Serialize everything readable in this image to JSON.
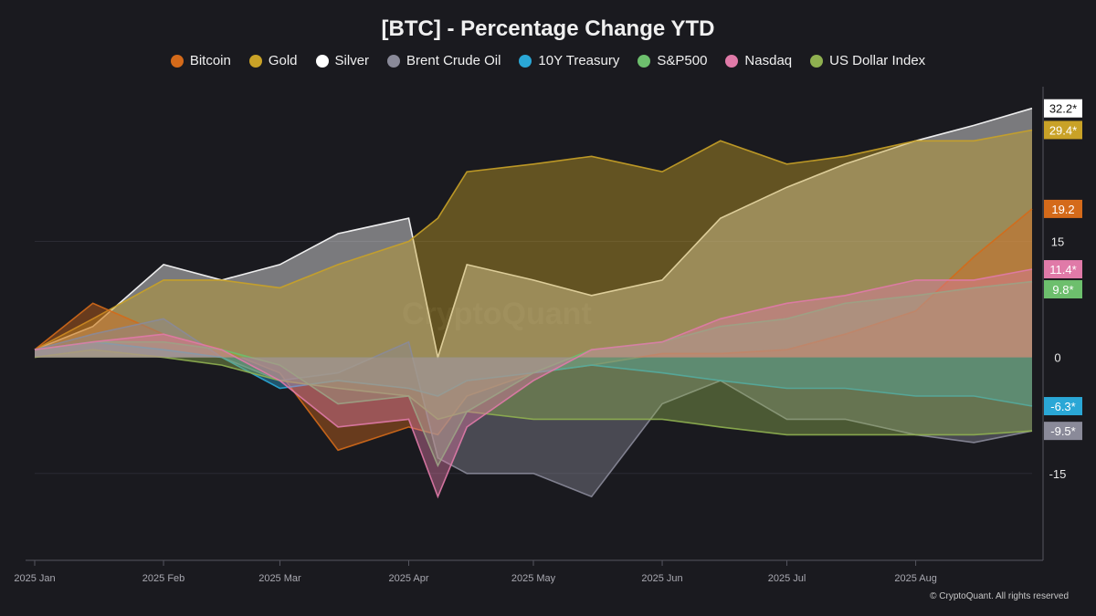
{
  "footer": "© CryptoQuant. All rights reserved",
  "watermark": "CryptoQuant",
  "chart_data": {
    "type": "area",
    "title": "[BTC] - Percentage Change YTD",
    "x": [
      "2025-01-01",
      "2025-01-15",
      "2025-02-01",
      "2025-02-15",
      "2025-03-01",
      "2025-03-15",
      "2025-04-01",
      "2025-04-08",
      "2025-04-15",
      "2025-05-01",
      "2025-05-15",
      "2025-06-01",
      "2025-06-15",
      "2025-07-01",
      "2025-07-15",
      "2025-08-01",
      "2025-08-15",
      "2025-08-29"
    ],
    "x_tick_labels": [
      "2025 Jan",
      "2025 Feb",
      "2025 Mar",
      "2025 Apr",
      "2025 May",
      "2025 Jun",
      "2025 Jul",
      "2025 Aug"
    ],
    "y_ticks": [
      15,
      0,
      -15
    ],
    "ylim": [
      -26,
      35
    ],
    "legend_position": "top-center",
    "grid": true,
    "series": [
      {
        "name": "Bitcoin",
        "color": "#d46a1a",
        "values": [
          1,
          7,
          3,
          1,
          -2,
          -12,
          -9,
          -10,
          -5,
          -2,
          -1,
          0.5,
          0.5,
          1,
          3,
          6,
          13,
          19.2
        ],
        "end_label": "19.2"
      },
      {
        "name": "Gold",
        "color": "#c9a227",
        "values": [
          1,
          5,
          10,
          10,
          9,
          12,
          15,
          18,
          24,
          25,
          26,
          24,
          28,
          25,
          26,
          28,
          28,
          29.4
        ],
        "end_label": "29.4*"
      },
      {
        "name": "Silver",
        "color": "#ffffff",
        "values": [
          1,
          4,
          12,
          10,
          12,
          16,
          18,
          0,
          12,
          10,
          8,
          10,
          18,
          22,
          25,
          28,
          30,
          32.2
        ],
        "end_label": "32.2*"
      },
      {
        "name": "Brent Crude Oil",
        "color": "#8a8a99",
        "values": [
          1,
          3,
          5,
          0,
          -3,
          -2,
          2,
          -13,
          -15,
          -15,
          -18,
          -6,
          -3,
          -8,
          -8,
          -10,
          -11,
          -9.5
        ],
        "end_label": "-9.5*"
      },
      {
        "name": "10Y Treasury",
        "color": "#2aa7d6",
        "values": [
          1,
          2,
          1,
          0,
          -4,
          -3,
          -4,
          -5,
          -3,
          -2,
          -1,
          -2,
          -3,
          -4,
          -4,
          -5,
          -5,
          -6.3
        ],
        "end_label": "-6.3*"
      },
      {
        "name": "S&P500",
        "color": "#6dbf6d",
        "values": [
          1,
          2,
          2,
          1,
          -1,
          -6,
          -5,
          -14,
          -7,
          -2,
          1,
          2,
          4,
          5,
          7,
          8,
          9,
          9.8
        ],
        "end_label": "9.8*"
      },
      {
        "name": "Nasdaq",
        "color": "#e07aa8",
        "values": [
          1,
          2,
          3,
          1,
          -3,
          -9,
          -8,
          -18,
          -9,
          -3,
          1,
          2,
          5,
          7,
          8,
          10,
          10,
          11.4
        ],
        "end_label": "11.4*"
      },
      {
        "name": "US Dollar Index",
        "color": "#8fb050",
        "values": [
          0,
          1,
          0,
          -1,
          -3,
          -4,
          -5,
          -8,
          -7,
          -8,
          -8,
          -8,
          -9,
          -10,
          -10,
          -10,
          -10,
          -9.5
        ],
        "end_label": ""
      }
    ]
  }
}
